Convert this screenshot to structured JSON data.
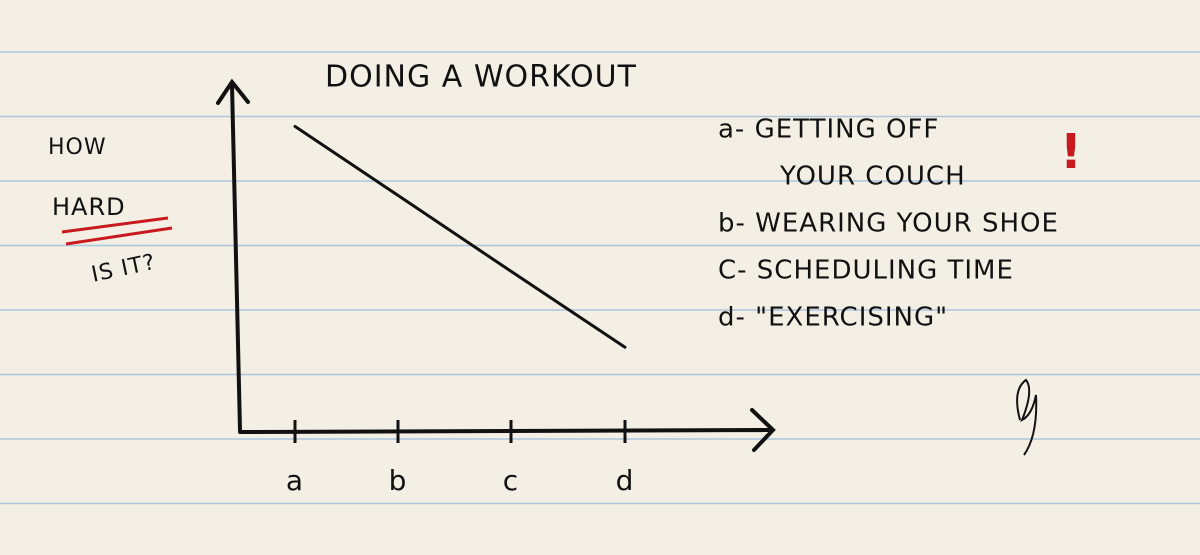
{
  "chart_data": {
    "type": "line",
    "title": "DOING A WORKOUT",
    "ylabel": [
      "HOW",
      "HARD",
      "IS IT?"
    ],
    "categories": [
      "a",
      "b",
      "c",
      "d"
    ],
    "values": [
      88,
      68,
      46,
      24
    ],
    "ylim": [
      0,
      100
    ],
    "color": "#111111",
    "legend": [
      [
        "a- GETTING OFF",
        "YOUR COUCH"
      ],
      [
        "b- WEARING YOUR SHOE"
      ],
      [
        "C- SCHEDULING TIME"
      ],
      [
        "d- \"EXERCISING\""
      ]
    ],
    "emphasis": "!"
  }
}
